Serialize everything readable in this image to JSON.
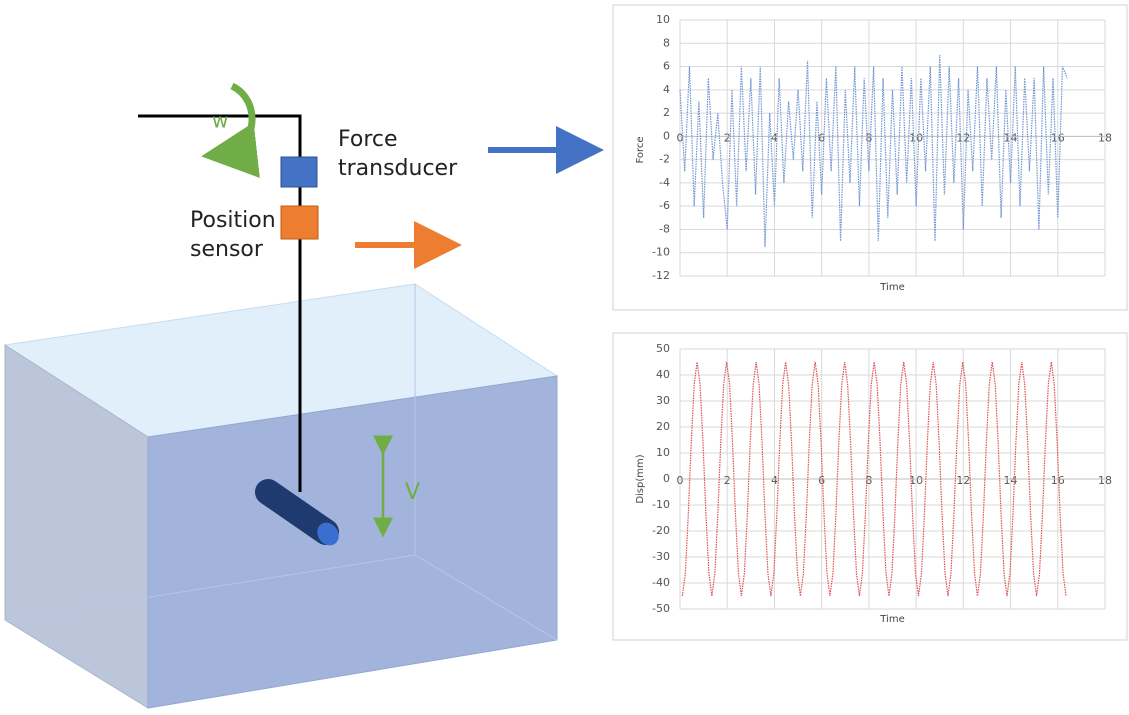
{
  "labels": {
    "w": "w",
    "force_transducer": [
      "Force",
      "transducer"
    ],
    "position_sensor": [
      "Position",
      "sensor"
    ],
    "v": "V"
  },
  "chart_data": [
    {
      "type": "line",
      "xlabel": "Time",
      "ylabel": "Force",
      "xlim": [
        0,
        18
      ],
      "xticks": [
        0,
        2,
        4,
        6,
        8,
        10,
        12,
        14,
        16,
        18
      ],
      "ylim": [
        -12,
        10
      ],
      "yticks": [
        -12,
        -10,
        -8,
        -6,
        -4,
        -2,
        0,
        2,
        4,
        6,
        8,
        10
      ],
      "grid": true,
      "series": [
        {
          "color": "#6f95d2",
          "x": [
            0,
            0.2,
            0.4,
            0.6,
            0.8,
            1,
            1.2,
            1.4,
            1.6,
            1.8,
            2,
            2.2,
            2.4,
            2.6,
            2.8,
            3,
            3.2,
            3.4,
            3.6,
            3.8,
            4,
            4.2,
            4.4,
            4.6,
            4.8,
            5,
            5.2,
            5.4,
            5.6,
            5.8,
            6,
            6.2,
            6.4,
            6.6,
            6.8,
            7,
            7.2,
            7.4,
            7.6,
            7.8,
            8,
            8.2,
            8.4,
            8.6,
            8.8,
            9,
            9.2,
            9.4,
            9.6,
            9.8,
            10,
            10.2,
            10.4,
            10.6,
            10.8,
            11,
            11.2,
            11.4,
            11.6,
            11.8,
            12,
            12.2,
            12.4,
            12.6,
            12.8,
            13,
            13.2,
            13.4,
            13.6,
            13.8,
            14,
            14.2,
            14.4,
            14.6,
            14.8,
            15,
            15.2,
            15.4,
            15.6,
            15.8,
            16,
            16.2,
            16.4
          ],
          "values": [
            4,
            -3,
            6,
            -6,
            3,
            -7,
            5,
            -2,
            2,
            -4,
            -8,
            4,
            -6,
            6,
            -3,
            5,
            -5,
            6,
            -9.5,
            2,
            -6,
            5,
            -4,
            3,
            -2,
            4,
            -3,
            6.5,
            -7,
            3,
            -5,
            5,
            -3,
            6,
            -9,
            4,
            -4,
            6,
            -6,
            5,
            -3,
            6,
            -9,
            5,
            -7,
            4,
            -5,
            6,
            -4,
            5,
            -6,
            5,
            -3,
            6,
            -9,
            7,
            -5,
            6,
            -4,
            5,
            -8,
            4,
            -3,
            6,
            -6,
            5,
            -2,
            6,
            -7,
            4,
            -4,
            6,
            -6,
            5,
            -3,
            5,
            -8,
            6,
            -5,
            5,
            -7,
            6,
            5
          ]
        }
      ]
    },
    {
      "type": "line",
      "xlabel": "Time",
      "ylabel": "Disp(mm)",
      "xlim": [
        0,
        18
      ],
      "xticks": [
        0,
        2,
        4,
        6,
        8,
        10,
        12,
        14,
        16,
        18
      ],
      "ylim": [
        -50,
        50
      ],
      "yticks": [
        -50,
        -40,
        -30,
        -20,
        -10,
        0,
        10,
        20,
        30,
        40,
        50
      ],
      "grid": true,
      "series": [
        {
          "color": "#e05050",
          "x": [
            0.1,
            0.225,
            0.35,
            0.475,
            0.6,
            0.725,
            0.85,
            0.975,
            1.1,
            1.225,
            1.35,
            1.475,
            1.6,
            1.725,
            1.85,
            1.975,
            2.1,
            2.225,
            2.35,
            2.475,
            2.6,
            2.725,
            2.85,
            2.975,
            3.1,
            3.225,
            3.35,
            3.475,
            3.6,
            3.725,
            3.85,
            3.975,
            4.1,
            4.225,
            4.35,
            4.475,
            4.6,
            4.725,
            4.85,
            4.975,
            5.1,
            5.225,
            5.35,
            5.475,
            5.6,
            5.725,
            5.85,
            5.975,
            6.1,
            6.225,
            6.35,
            6.475,
            6.6,
            6.725,
            6.85,
            6.975,
            7.1,
            7.225,
            7.35,
            7.475,
            7.6,
            7.725,
            7.85,
            7.975,
            8.1,
            8.225,
            8.35,
            8.475,
            8.6,
            8.725,
            8.85,
            8.975,
            9.1,
            9.225,
            9.35,
            9.475,
            9.6,
            9.725,
            9.85,
            9.975,
            10.1,
            10.225,
            10.35,
            10.475,
            10.6,
            10.725,
            10.85,
            10.975,
            11.1,
            11.225,
            11.35,
            11.475,
            11.6,
            11.725,
            11.85,
            11.975,
            12.1,
            12.225,
            12.35,
            12.475,
            12.6,
            12.725,
            12.85,
            12.975,
            13.1,
            13.225,
            13.35,
            13.475,
            13.6,
            13.725,
            13.85,
            13.975,
            14.1,
            14.225,
            14.35,
            14.475,
            14.6,
            14.725,
            14.85,
            14.975,
            15.1,
            15.225,
            15.35,
            15.475,
            15.6,
            15.725,
            15.85,
            15.975,
            16.1,
            16.225,
            16.35
          ],
          "values": [
            -45,
            -36.4,
            -13.9,
            13.9,
            36.4,
            45,
            36.4,
            13.9,
            -13.9,
            -36.4,
            -45,
            -36.4,
            -13.9,
            13.9,
            36.4,
            45,
            36.4,
            13.9,
            -13.9,
            -36.4,
            -45,
            -36.4,
            -13.9,
            13.9,
            36.4,
            45,
            36.4,
            13.9,
            -13.9,
            -36.4,
            -45,
            -36.4,
            -13.9,
            13.9,
            36.4,
            45,
            36.4,
            13.9,
            -13.9,
            -36.4,
            -45,
            -36.4,
            -13.9,
            13.9,
            36.4,
            45,
            36.4,
            13.9,
            -13.9,
            -36.4,
            -45,
            -36.4,
            -13.9,
            13.9,
            36.4,
            45,
            36.4,
            13.9,
            -13.9,
            -36.4,
            -45,
            -36.4,
            -13.9,
            13.9,
            36.4,
            45,
            36.4,
            13.9,
            -13.9,
            -36.4,
            -45,
            -36.4,
            -13.9,
            13.9,
            36.4,
            45,
            36.4,
            13.9,
            -13.9,
            -36.4,
            -45,
            -36.4,
            -13.9,
            13.9,
            36.4,
            45,
            36.4,
            13.9,
            -13.9,
            -36.4,
            -45,
            -36.4,
            -13.9,
            13.9,
            36.4,
            45,
            36.4,
            13.9,
            -13.9,
            -36.4,
            -45,
            -36.4,
            -13.9,
            13.9,
            36.4,
            45,
            36.4,
            13.9,
            -13.9,
            -36.4,
            -45,
            -36.4,
            -13.9,
            13.9,
            36.4,
            45,
            36.4,
            13.9,
            -13.9,
            -36.4,
            -45,
            -36.4,
            -13.9,
            13.9,
            36.4,
            45,
            36.4,
            13.9,
            -13.9,
            -36.4,
            -45
          ]
        }
      ]
    }
  ]
}
